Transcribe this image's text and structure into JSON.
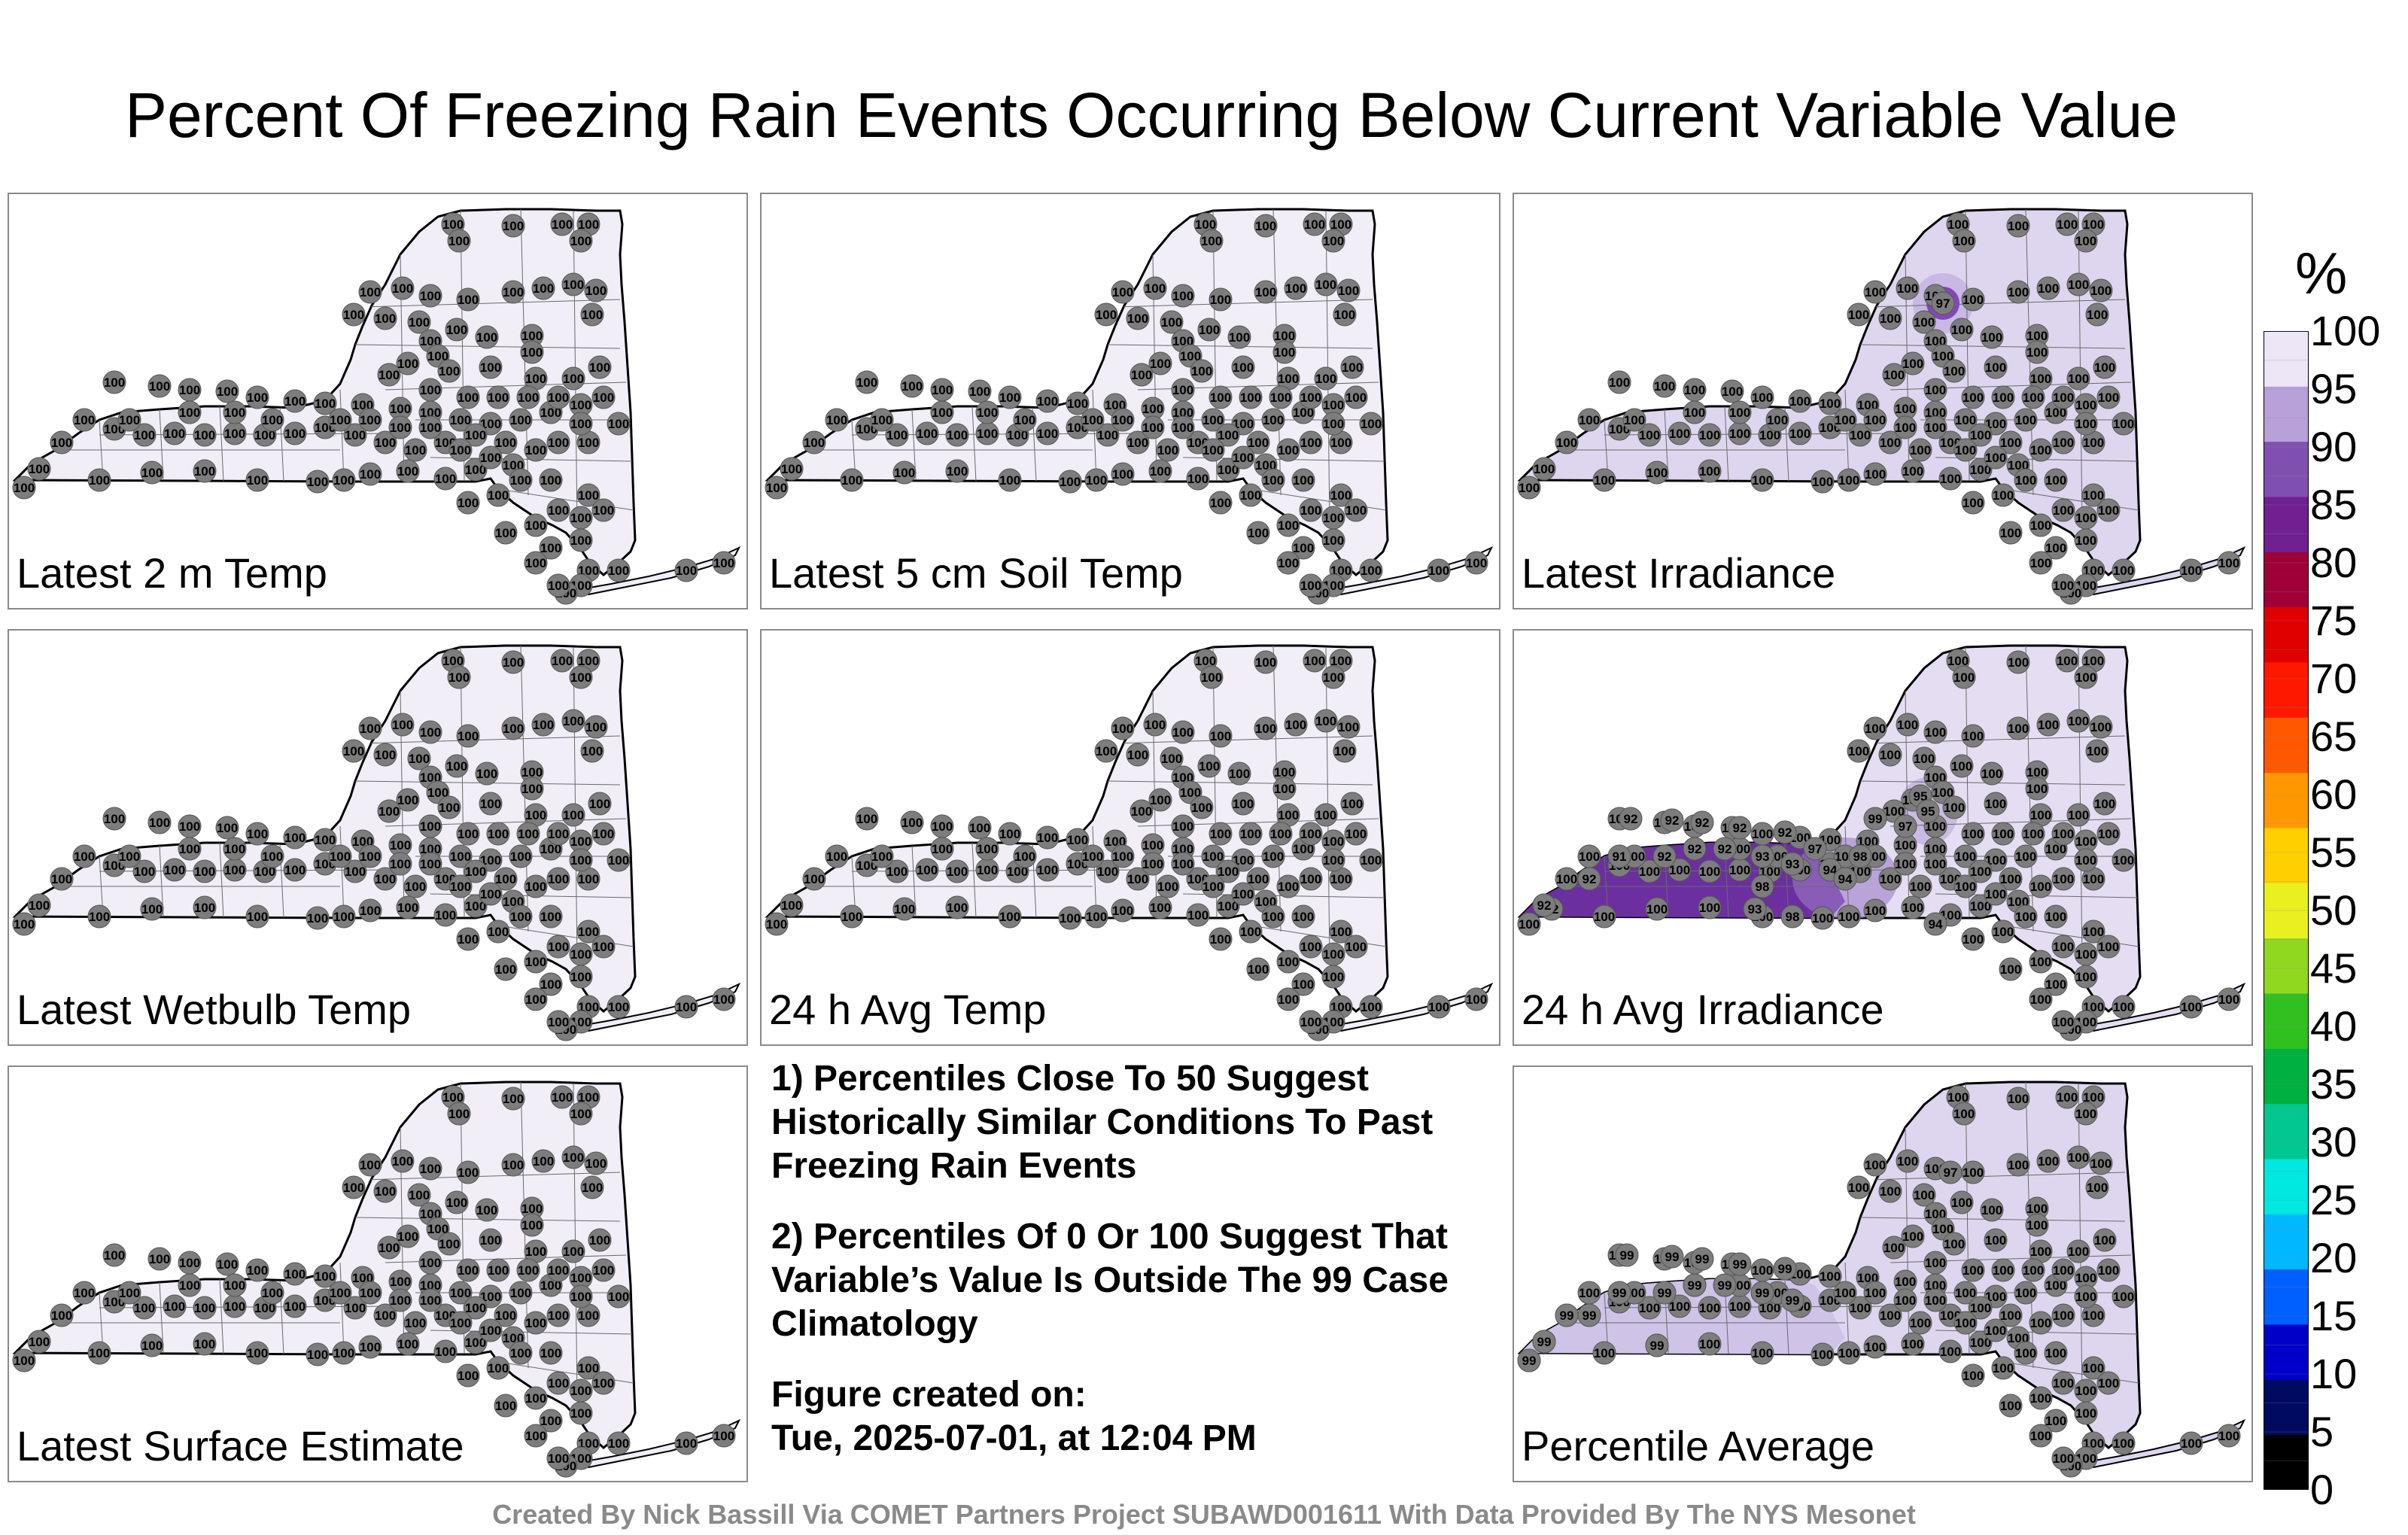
{
  "title": "Percent Of Freezing Rain Events Occurring Below Current Variable Value",
  "panels": [
    {
      "id": "temp2m",
      "label": "Latest 2 m Temp",
      "mode": "uniform",
      "fill": "#f1eef8"
    },
    {
      "id": "soil5cm",
      "label": "Latest 5 cm Soil Temp",
      "mode": "uniform",
      "fill": "#f1eef8"
    },
    {
      "id": "irradiance",
      "label": "Latest Irradiance",
      "mode": "irradiance",
      "fill": "#ded6ef",
      "highlights": [
        {
          "value": "97"
        }
      ]
    },
    {
      "id": "wetbulb",
      "label": "Latest Wetbulb Temp",
      "mode": "uniform",
      "fill": "#f1eef8"
    },
    {
      "id": "avgtemp24",
      "label": "24 h Avg Temp",
      "mode": "uniform",
      "fill": "#f1eef8"
    },
    {
      "id": "avgirr24",
      "label": "24 h Avg Irradiance",
      "mode": "avgirr",
      "fill": "#e5def3",
      "west_fill": "#6b2fa0",
      "west_values": [
        "92",
        "92",
        "92",
        "92",
        "92",
        "91",
        "92",
        "92",
        "92",
        "93",
        "93",
        "92",
        "98",
        "97",
        "94",
        "93",
        "98",
        "94",
        "98",
        "99",
        "97",
        "95",
        "95",
        "94",
        "92",
        "92"
      ]
    },
    {
      "id": "surface",
      "label": "Latest Surface Estimate",
      "mode": "uniform",
      "fill": "#f1eef8"
    },
    {
      "id": "pctavg",
      "label": "Percentile Average",
      "mode": "avg",
      "fill": "#ded6ef",
      "west_values": [
        "99",
        "99",
        "99",
        "99",
        "99",
        "99",
        "99",
        "99",
        "99",
        "99",
        "99",
        "99",
        "99",
        "99",
        "99",
        "99",
        "97"
      ]
    }
  ],
  "station_value": "100",
  "notes": [
    "1) Percentiles Close To 50 Suggest Historically Similar Conditions To Past Freezing Rain Events",
    "2) Percentiles Of 0 Or 100 Suggest That Variable’s Value Is Outside The 99 Case Climatology"
  ],
  "created_label": "Figure created on:",
  "created_value": "Tue, 2025-07-01, at 12:04 PM",
  "footer": "Created By Nick Bassill Via COMET Partners Project SUBAWD001611 With Data Provided By The NYS Mesonet",
  "colorbar": {
    "unit": "%",
    "ticks": [
      "100",
      "95",
      "90",
      "85",
      "80",
      "75",
      "70",
      "65",
      "60",
      "55",
      "50",
      "45",
      "40",
      "35",
      "30",
      "25",
      "20",
      "15",
      "10",
      "5",
      "0"
    ],
    "colors": [
      "#000000",
      "#000a60",
      "#0000c8",
      "#0060ff",
      "#00b8ff",
      "#00e8e0",
      "#00c890",
      "#00b040",
      "#30c020",
      "#90d820",
      "#e8f020",
      "#ffd000",
      "#ff9800",
      "#ff5800",
      "#ff1800",
      "#e00000",
      "#a00038",
      "#702090",
      "#8050b0",
      "#b8a0d8",
      "#ece6f6"
    ]
  }
}
